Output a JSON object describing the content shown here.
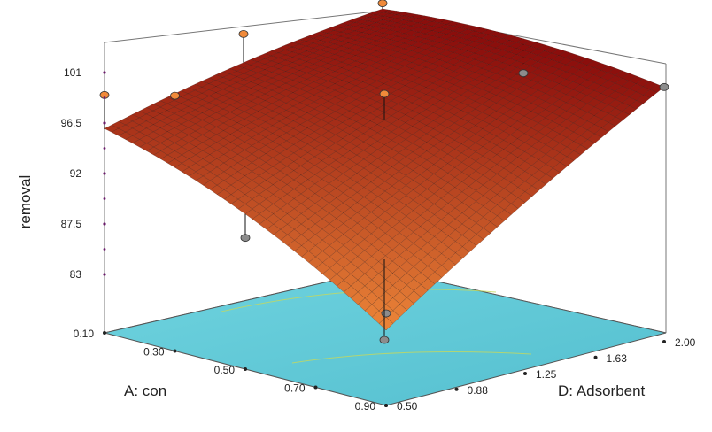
{
  "chart_data": {
    "type": "surface3d",
    "zlabel": "removal",
    "xlabel": "A: con",
    "ylabel": "D: Adsorbent",
    "z_ticks": [
      "83",
      "87.5",
      "92",
      "96.5",
      "101"
    ],
    "x_ticks": [
      "0.10",
      "0.30",
      "0.50",
      "0.70",
      "0.90"
    ],
    "y_ticks": [
      "0.50",
      "0.88",
      "1.25",
      "1.63",
      "2.00"
    ],
    "xlim": [
      0.1,
      0.9
    ],
    "ylim": [
      0.5,
      2.0
    ],
    "zlim": [
      83,
      101
    ],
    "surface_corners": {
      "x_low_y_low": 96.0,
      "x_high_y_low": 84.5,
      "x_low_y_high": 101.0,
      "x_high_y_high": 100.5
    },
    "surface_peak": 101.2,
    "design_points": [
      {
        "x": 0.1,
        "y": 0.5,
        "z": 99.0,
        "above": true
      },
      {
        "x": 0.1,
        "y": 1.25,
        "z": 101.6,
        "above": true
      },
      {
        "x": 0.1,
        "y": 2.0,
        "z": 101.5,
        "above": true
      },
      {
        "x": 0.5,
        "y": 1.25,
        "z": 99.5,
        "above": true
      },
      {
        "x": 0.1,
        "y": 0.88,
        "z": 97.5,
        "above": true
      },
      {
        "x": 0.5,
        "y": 0.5,
        "z": 89.5,
        "above": false
      },
      {
        "x": 0.9,
        "y": 0.5,
        "z": 86.0,
        "above": false
      },
      {
        "x": 0.9,
        "y": 2.0,
        "z": 100.5,
        "above": false
      },
      {
        "x": 0.5,
        "y": 2.0,
        "z": 98.5,
        "above": false
      }
    ],
    "colors": {
      "floor": "#5fcad8",
      "surface_high": "#8b0e0c",
      "surface_low": "#f08a3a",
      "point_above": "#f08a3a",
      "point_below": "#8c8c8c"
    }
  }
}
